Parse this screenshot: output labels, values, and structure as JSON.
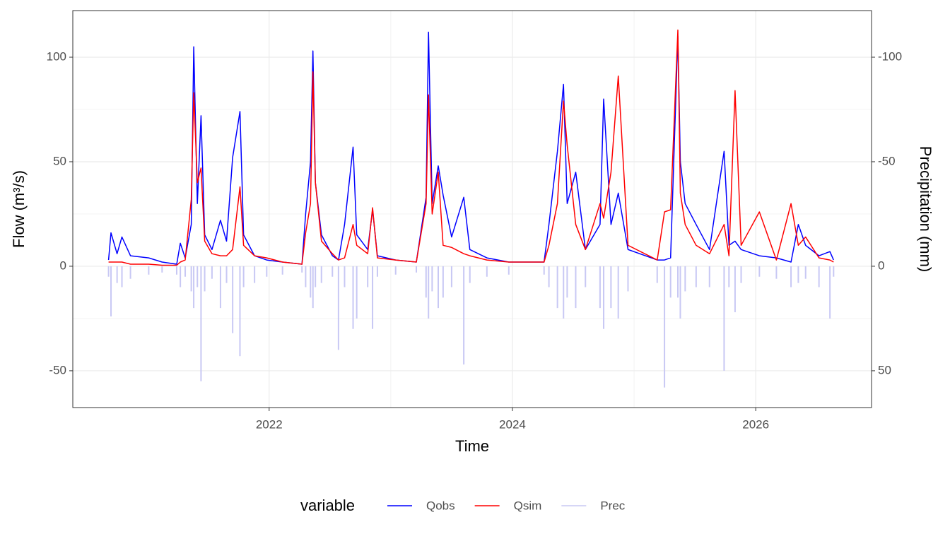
{
  "chart_data": {
    "type": "line",
    "x_label": "Time",
    "y_label": "Flow (m³/s)",
    "y2_label": "Precipitation (mm)",
    "legend_title": "variable",
    "legend_position": "bottom",
    "grid": true,
    "xlim": [
      2020.386,
      2026.952
    ],
    "xticks": [
      2022,
      2024,
      2026
    ],
    "ylim": [
      -67.6,
      122.3
    ],
    "yticks": [
      -50,
      0,
      50,
      100
    ],
    "y2lim": [
      67.6,
      -122.3
    ],
    "y2ticks": [
      -100,
      -50,
      0,
      50
    ],
    "x": [
      2020.68,
      2020.7,
      2020.75,
      2020.79,
      2020.86,
      2021.01,
      2021.12,
      2021.24,
      2021.27,
      2021.31,
      2021.36,
      2021.38,
      2021.41,
      2021.44,
      2021.47,
      2021.53,
      2021.6,
      2021.65,
      2021.7,
      2021.76,
      2021.79,
      2021.88,
      2021.98,
      2022.11,
      2022.27,
      2022.3,
      2022.34,
      2022.36,
      2022.38,
      2022.43,
      2022.52,
      2022.57,
      2022.62,
      2022.69,
      2022.72,
      2022.81,
      2022.85,
      2022.89,
      2023.04,
      2023.21,
      2023.29,
      2023.31,
      2023.34,
      2023.39,
      2023.43,
      2023.5,
      2023.6,
      2023.65,
      2023.79,
      2023.97,
      2024.26,
      2024.3,
      2024.37,
      2024.42,
      2024.45,
      2024.52,
      2024.6,
      2024.72,
      2024.75,
      2024.81,
      2024.87,
      2024.95,
      2025.19,
      2025.25,
      2025.3,
      2025.36,
      2025.38,
      2025.42,
      2025.51,
      2025.62,
      2025.74,
      2025.78,
      2025.83,
      2025.88,
      2026.03,
      2026.17,
      2026.29,
      2026.35,
      2026.41,
      2026.52,
      2026.61,
      2026.64
    ],
    "series": [
      {
        "name": "Qobs",
        "color": "#0000ff",
        "values": [
          3,
          16,
          6,
          14,
          5,
          4,
          2,
          1,
          11,
          4,
          20,
          105,
          30,
          72,
          15,
          8,
          22,
          12,
          52,
          74,
          15,
          5,
          3,
          2,
          1,
          25,
          50,
          103,
          40,
          15,
          5,
          3,
          20,
          57,
          15,
          8,
          27,
          5,
          3,
          2,
          33,
          112,
          30,
          48,
          34,
          14,
          33,
          8,
          4,
          2,
          2,
          20,
          55,
          87,
          30,
          45,
          8,
          20,
          80,
          20,
          35,
          8,
          3,
          3,
          4,
          110,
          50,
          30,
          20,
          8,
          55,
          10,
          12,
          8,
          5,
          4,
          2,
          20,
          10,
          5,
          7,
          3
        ]
      },
      {
        "name": "Qsim",
        "color": "#ff0000",
        "values": [
          2,
          2,
          2,
          2,
          1,
          1,
          0.5,
          0.5,
          2,
          3,
          32,
          83,
          40,
          47,
          12,
          6,
          5,
          5,
          8,
          38,
          10,
          5,
          4,
          2,
          1,
          16,
          30,
          93,
          40,
          12,
          6,
          3,
          4,
          20,
          10,
          6,
          28,
          4,
          3,
          2,
          30,
          82,
          25,
          45,
          10,
          9,
          6,
          5,
          3,
          2,
          2,
          10,
          30,
          79,
          58,
          20,
          8,
          30,
          23,
          45,
          91,
          10,
          3,
          26,
          27,
          113,
          35,
          20,
          10,
          6,
          20,
          5,
          84,
          10,
          26,
          3,
          30,
          10,
          14,
          4,
          3,
          2
        ]
      },
      {
        "name": "Prec",
        "color": "#c8c8f4",
        "axis": "y2",
        "values": [
          5,
          24,
          8,
          10,
          6,
          4,
          3,
          4,
          10,
          5,
          12,
          20,
          10,
          55,
          12,
          6,
          20,
          8,
          32,
          43,
          10,
          8,
          5,
          4,
          3,
          10,
          15,
          20,
          10,
          8,
          5,
          40,
          10,
          30,
          25,
          10,
          30,
          5,
          4,
          3,
          15,
          25,
          12,
          20,
          15,
          10,
          47,
          8,
          5,
          4,
          4,
          10,
          20,
          25,
          15,
          20,
          10,
          20,
          30,
          20,
          25,
          12,
          8,
          58,
          15,
          15,
          25,
          12,
          10,
          10,
          50,
          10,
          22,
          8,
          5,
          6,
          10,
          8,
          6,
          10,
          25,
          5
        ]
      }
    ]
  }
}
